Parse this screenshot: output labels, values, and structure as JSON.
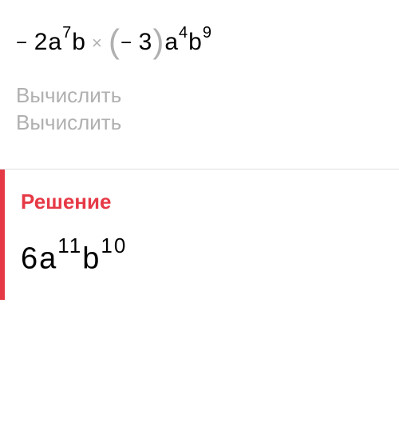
{
  "problem": {
    "coefficient1": "2",
    "var1": "a",
    "exp1": "7",
    "var2": "b",
    "coefficient2": "3",
    "var3": "a",
    "exp3": "4",
    "var4": "b",
    "exp4": "9",
    "colors": {
      "text": "#000000",
      "paren": "#b0b0b0",
      "mult": "#b0b0b0"
    }
  },
  "prompt": {
    "line1": "Вычислить",
    "line2": "Вычислить",
    "color": "#b0b0b0"
  },
  "solution": {
    "title": "Решение",
    "title_color": "#e63946",
    "border_color": "#e63946",
    "result_coefficient": "6",
    "result_var1": "a",
    "result_exp1": "11",
    "result_var2": "b",
    "result_exp2": "10"
  }
}
